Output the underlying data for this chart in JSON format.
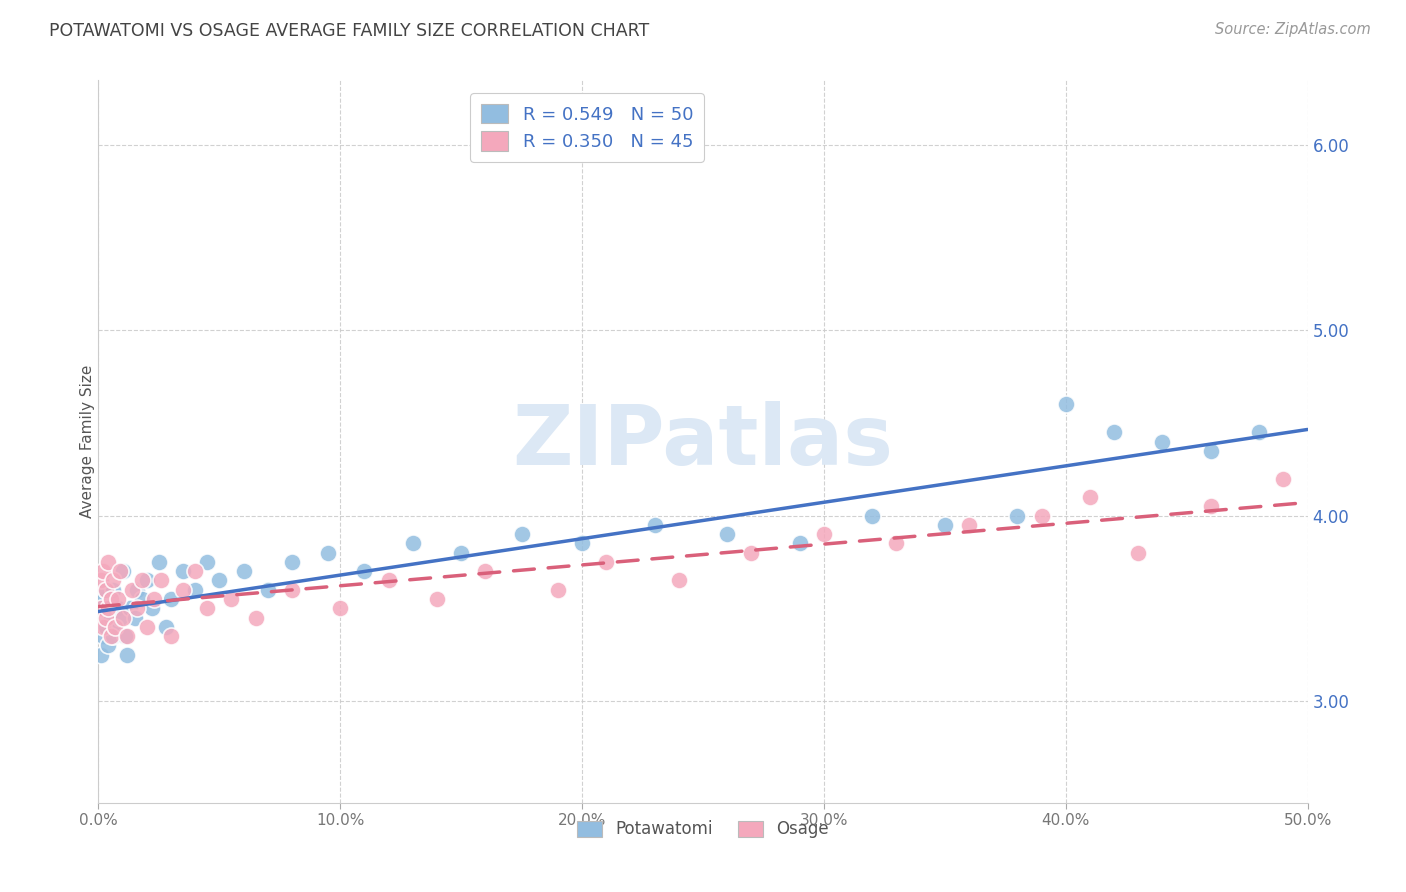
{
  "title": "POTAWATOMI VS OSAGE AVERAGE FAMILY SIZE CORRELATION CHART",
  "source_text": "Source: ZipAtlas.com",
  "ylabel": "Average Family Size",
  "xlim": [
    0.0,
    0.5
  ],
  "ylim": [
    2.45,
    6.35
  ],
  "yticks": [
    3.0,
    4.0,
    5.0,
    6.0
  ],
  "xticks": [
    0.0,
    0.1,
    0.2,
    0.3,
    0.4,
    0.5
  ],
  "xtick_labels": [
    "0.0%",
    "10.0%",
    "20.0%",
    "30.0%",
    "40.0%",
    "50.0%"
  ],
  "blue_color": "#92bde0",
  "pink_color": "#f4a8bc",
  "trend_blue": "#4472c4",
  "trend_pink": "#d9607a",
  "trend_pink_dashed": "#c0c0c0",
  "watermark_color": "#dce8f5",
  "legend_label_blue": "R = 0.549   N = 50",
  "legend_label_pink": "R = 0.350   N = 45",
  "potawatomi_x": [
    0.001,
    0.002,
    0.002,
    0.003,
    0.003,
    0.004,
    0.004,
    0.005,
    0.005,
    0.006,
    0.006,
    0.007,
    0.008,
    0.009,
    0.01,
    0.011,
    0.012,
    0.013,
    0.015,
    0.016,
    0.018,
    0.02,
    0.022,
    0.025,
    0.028,
    0.03,
    0.035,
    0.04,
    0.045,
    0.05,
    0.06,
    0.07,
    0.08,
    0.095,
    0.11,
    0.13,
    0.15,
    0.175,
    0.2,
    0.23,
    0.26,
    0.29,
    0.32,
    0.35,
    0.38,
    0.4,
    0.42,
    0.44,
    0.46,
    0.48
  ],
  "potawatomi_y": [
    3.25,
    3.35,
    3.55,
    3.4,
    3.6,
    3.3,
    3.5,
    3.45,
    3.55,
    3.35,
    3.6,
    3.4,
    3.5,
    3.45,
    3.7,
    3.35,
    3.25,
    3.5,
    3.45,
    3.6,
    3.55,
    3.65,
    3.5,
    3.75,
    3.4,
    3.55,
    3.7,
    3.6,
    3.75,
    3.65,
    3.7,
    3.6,
    3.75,
    3.8,
    3.7,
    3.85,
    3.8,
    3.9,
    3.85,
    3.95,
    3.9,
    3.85,
    4.0,
    3.95,
    4.0,
    4.6,
    4.45,
    4.4,
    4.35,
    4.45
  ],
  "osage_x": [
    0.001,
    0.001,
    0.002,
    0.002,
    0.003,
    0.003,
    0.004,
    0.004,
    0.005,
    0.005,
    0.006,
    0.007,
    0.008,
    0.009,
    0.01,
    0.012,
    0.014,
    0.016,
    0.018,
    0.02,
    0.023,
    0.026,
    0.03,
    0.035,
    0.04,
    0.045,
    0.055,
    0.065,
    0.08,
    0.1,
    0.12,
    0.14,
    0.16,
    0.19,
    0.21,
    0.24,
    0.27,
    0.3,
    0.33,
    0.36,
    0.39,
    0.41,
    0.43,
    0.46,
    0.49
  ],
  "osage_y": [
    3.5,
    3.65,
    3.4,
    3.7,
    3.45,
    3.6,
    3.5,
    3.75,
    3.35,
    3.55,
    3.65,
    3.4,
    3.55,
    3.7,
    3.45,
    3.35,
    3.6,
    3.5,
    3.65,
    3.4,
    3.55,
    3.65,
    3.35,
    3.6,
    3.7,
    3.5,
    3.55,
    3.45,
    3.6,
    3.5,
    3.65,
    3.55,
    3.7,
    3.6,
    3.75,
    3.65,
    3.8,
    3.9,
    3.85,
    3.95,
    4.0,
    4.1,
    3.8,
    4.05,
    4.2
  ]
}
